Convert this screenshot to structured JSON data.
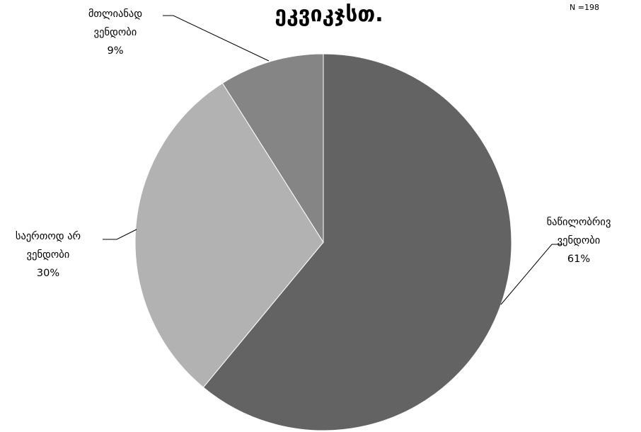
{
  "chart_data": {
    "type": "pie",
    "title": "ეკვიკჯსთ.",
    "note": "N =198",
    "slices": [
      {
        "label_lines": [
          "ნაწილობრივ",
          "ვენდობი"
        ],
        "value": 61,
        "value_label": "61%",
        "color": "#636363"
      },
      {
        "label_lines": [
          "საერთოდ არ",
          "ვენდობი"
        ],
        "value": 30,
        "value_label": "30%",
        "color": "#b2b2b2"
      },
      {
        "label_lines": [
          "მთლიანად",
          "ვენდობი"
        ],
        "value": 9,
        "value_label": "9%",
        "color": "#858585"
      }
    ]
  }
}
